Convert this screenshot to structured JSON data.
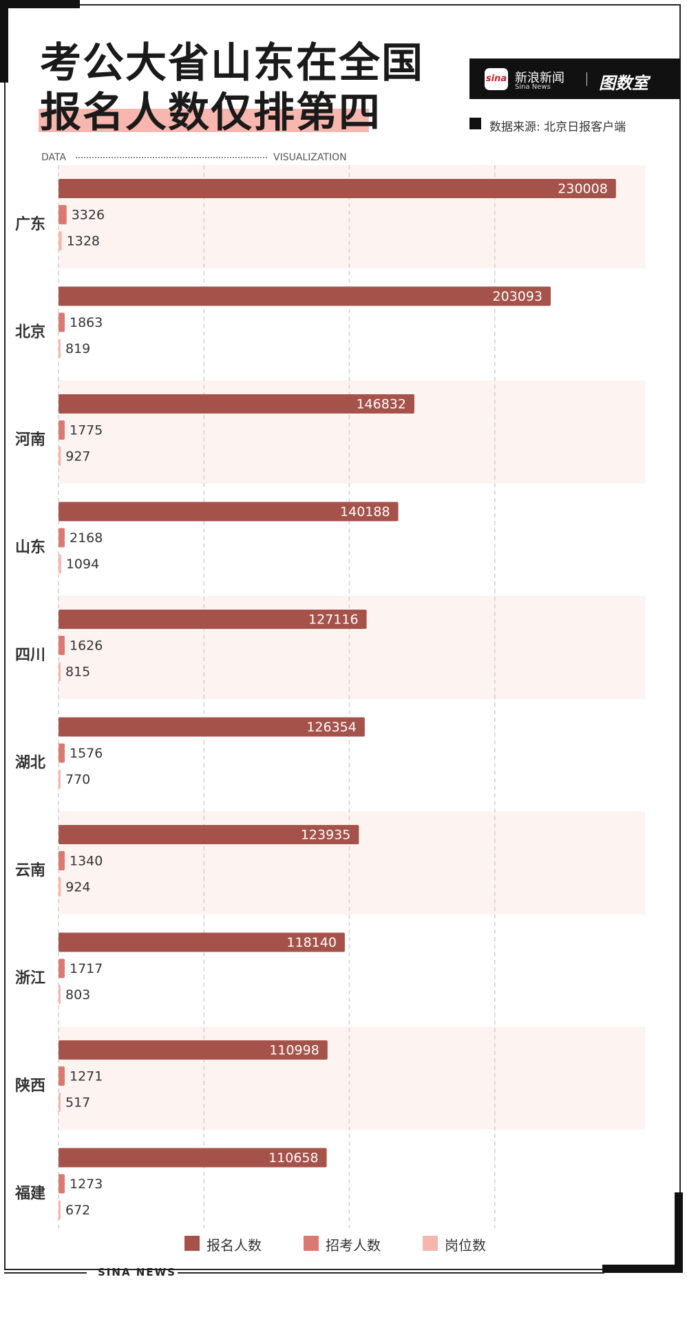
{
  "title_line1": "考公大省山东在全国",
  "title_line2": "报名人数仅排第四",
  "brand": {
    "logo_text": "sina",
    "name": "新浪新闻",
    "sub": "Sina News",
    "right_text": "图数室"
  },
  "source": "数据来源: 北京日报客户端",
  "header_labels": {
    "data": "DATA",
    "visualization": "VISUALIZATION"
  },
  "footer": "SINA NEWS",
  "colors": {
    "applicants": "#a5524b",
    "recruits": "#d9796f",
    "positions": "#f5b6ae",
    "band": "#fdf3f1",
    "grid": "#cfcfcf"
  },
  "chart_data": {
    "type": "bar",
    "orientation": "horizontal",
    "categories": [
      "广东",
      "北京",
      "河南",
      "山东",
      "四川",
      "湖北",
      "云南",
      "浙江",
      "陕西",
      "福建"
    ],
    "series": [
      {
        "name": "报名人数",
        "values": [
          230008,
          203093,
          146832,
          140188,
          127116,
          126354,
          123935,
          118140,
          110998,
          110658
        ]
      },
      {
        "name": "招考人数",
        "values": [
          3326,
          1863,
          1775,
          2168,
          1626,
          1576,
          1340,
          1717,
          1271,
          1273
        ]
      },
      {
        "name": "岗位数",
        "values": [
          1328,
          819,
          927,
          1094,
          815,
          770,
          924,
          803,
          517,
          672
        ]
      }
    ],
    "xlim": [
      0,
      240000
    ],
    "grid": true,
    "legend_position": "bottom"
  }
}
